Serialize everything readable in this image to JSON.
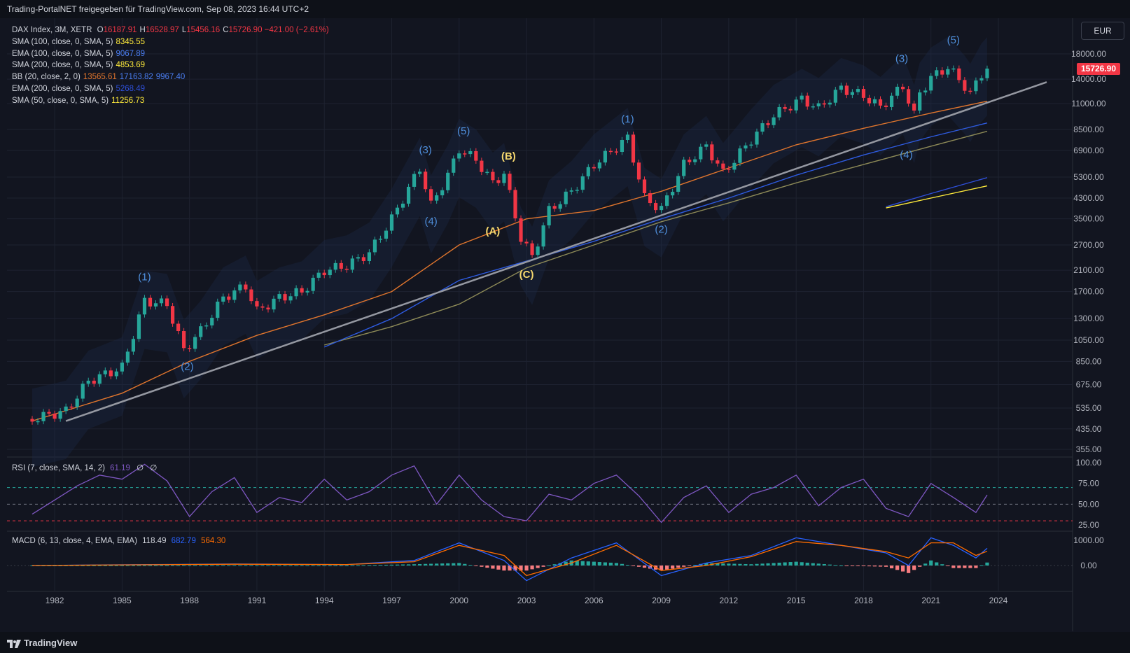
{
  "header": {
    "title": "Trading-PortalNET freigegeben für TradingView.com, Sep 08, 2023 16:44 UTC+2"
  },
  "footer": {
    "brand": "TradingView"
  },
  "currency_button": "EUR",
  "price_label": "15726.90",
  "legend": {
    "symbol": "DAX Index, 3M, XETR",
    "ohlc": [
      {
        "k": "O",
        "v": "16187.91"
      },
      {
        "k": "H",
        "v": "16528.97"
      },
      {
        "k": "L",
        "v": "15456.16"
      },
      {
        "k": "C",
        "v": "15726.90"
      }
    ],
    "change": "−421.00 (−2.61%)",
    "studies": [
      {
        "label": "SMA (100, close, 0, SMA, 5)",
        "values": [
          {
            "v": "8345.55",
            "color": "#ffeb3b"
          }
        ]
      },
      {
        "label": "EMA (100, close, 0, SMA, 5)",
        "values": [
          {
            "v": "9067.89",
            "color": "#4a7df0"
          }
        ]
      },
      {
        "label": "SMA (200, close, 0, SMA, 5)",
        "values": [
          {
            "v": "4853.69",
            "color": "#ffeb3b"
          }
        ]
      },
      {
        "label": "BB (20, close, 2, 0)",
        "values": [
          {
            "v": "13565.61",
            "color": "#e0752d"
          },
          {
            "v": "17163.82",
            "color": "#4a7df0"
          },
          {
            "v": "9967.40",
            "color": "#4a7df0"
          }
        ]
      },
      {
        "label": "EMA (200, close, 0, SMA, 5)",
        "values": [
          {
            "v": "5268.49",
            "color": "#2e4fd8"
          }
        ]
      },
      {
        "label": "SMA (50, close, 0, SMA, 5)",
        "values": [
          {
            "v": "11256.73",
            "color": "#ffeb3b"
          }
        ]
      }
    ]
  },
  "rsi_legend": {
    "label": "RSI (7, close, SMA, 14, 2)",
    "v1": "61.19",
    "v2": "∅",
    "v3": "∅"
  },
  "macd_legend": {
    "label": "MACD (6, 13, close, 4, EMA, EMA)",
    "v1": "118.49",
    "v2": "682.79",
    "v3": "564.30"
  },
  "colors": {
    "up": "#26a69a",
    "down": "#f23645",
    "wave_blue": "#4f8fdc",
    "wave_yellow": "#f5d76e",
    "rsi": "#7e57c2",
    "macd": "#2962ff",
    "signal": "#ff6d00"
  },
  "chart_data": [
    {
      "type": "line",
      "title": "DAX Index, 3M, XETR",
      "y_scale": "log",
      "y_ticks": [
        "18000.00",
        "14000.00",
        "11000.00",
        "8500.00",
        "6900.00",
        "5300.00",
        "4300.00",
        "3500.00",
        "2700.00",
        "2100.00",
        "1700.00",
        "1300.00",
        "1050.00",
        "850.00",
        "675.00",
        "535.00",
        "435.00",
        "355.00"
      ],
      "x_ticks": [
        "1982",
        "1985",
        "1988",
        "1991",
        "1994",
        "1997",
        "2000",
        "2003",
        "2006",
        "2009",
        "2012",
        "2015",
        "2018",
        "2021",
        "2024"
      ],
      "series": [
        {
          "name": "DAX close",
          "x": [
            1981,
            1982.5,
            1983.5,
            1985,
            1986,
            1987,
            1987.75,
            1988.5,
            1989.5,
            1990.5,
            1991,
            1992,
            1993,
            1994,
            1995,
            1996,
            1997,
            1998.25,
            1998.75,
            1999.5,
            2000,
            2000.75,
            2001.5,
            2002,
            2002.75,
            2003.25,
            2004,
            2005,
            2006,
            2007.5,
            2008.25,
            2009,
            2010,
            2011,
            2011.75,
            2013,
            2014,
            2015.25,
            2016,
            2017,
            2018,
            2018.75,
            2019.75,
            2020.25,
            2020.5,
            2021,
            2021.75,
            2022.5,
            2022.75,
            2023.25,
            2023.5
          ],
          "values": [
            480,
            520,
            700,
            800,
            1550,
            1500,
            950,
            1150,
            1600,
            1800,
            1400,
            1600,
            1700,
            2100,
            2200,
            2500,
            3500,
            5800,
            4000,
            5400,
            7000,
            6300,
            5000,
            5500,
            2900,
            2400,
            3800,
            4600,
            6000,
            7800,
            4300,
            3850,
            6000,
            7200,
            5500,
            7700,
            9800,
            11500,
            10500,
            12800,
            11900,
            10600,
            13100,
            9800,
            12200,
            14200,
            15800,
            13100,
            12100,
            14800,
            15726.9
          ]
        },
        {
          "name": "SMA (100, close, 0, SMA, 5)",
          "x": [
            1994,
            1997,
            2000,
            2003,
            2006,
            2009,
            2012,
            2015,
            2018,
            2021,
            2023.5
          ],
          "values": [
            1000,
            1200,
            1500,
            2150,
            2700,
            3400,
            4100,
            5000,
            6000,
            7200,
            8345.55
          ]
        },
        {
          "name": "EMA (100, close, 0, SMA, 5)",
          "x": [
            1994,
            1997,
            2000,
            2003,
            2006,
            2009,
            2012,
            2015,
            2018,
            2021,
            2023.5
          ],
          "values": [
            980,
            1300,
            1900,
            2300,
            2800,
            3500,
            4300,
            5400,
            6600,
            7900,
            9067.89
          ]
        },
        {
          "name": "SMA (200, close, 0, SMA, 5)",
          "x": [
            2019,
            2021,
            2023.5
          ],
          "values": [
            3900,
            4300,
            4853.69
          ]
        },
        {
          "name": "EMA (200, close, 0, SMA, 5)",
          "x": [
            2019,
            2021,
            2023.5
          ],
          "values": [
            3950,
            4500,
            5268.49
          ]
        },
        {
          "name": "SMA (50, close, 0, SMA, 5)",
          "x": [
            1981,
            1985,
            1988,
            1991,
            1994,
            1997,
            2000,
            2003,
            2006,
            2009,
            2012,
            2015,
            2018,
            2021,
            2023.5
          ],
          "values": [
            470,
            620,
            850,
            1100,
            1350,
            1700,
            2700,
            3500,
            3800,
            4600,
            5800,
            7300,
            8600,
            10000,
            11256.73
          ]
        }
      ],
      "wave_labels": [
        {
          "text": "(1)",
          "x": 1986,
          "y": 1900,
          "color": "blue"
        },
        {
          "text": "(2)",
          "x": 1987.9,
          "y": 780,
          "color": "blue"
        },
        {
          "text": "(3)",
          "x": 1998.5,
          "y": 6700,
          "color": "blue"
        },
        {
          "text": "(4)",
          "x": 1998.75,
          "y": 3300,
          "color": "blue"
        },
        {
          "text": "(5)",
          "x": 2000.2,
          "y": 8100,
          "color": "blue"
        },
        {
          "text": "(A)",
          "x": 2001.5,
          "y": 3000,
          "color": "yellow"
        },
        {
          "text": "(B)",
          "x": 2002.2,
          "y": 6300,
          "color": "yellow"
        },
        {
          "text": "(C)",
          "x": 2003.0,
          "y": 1950,
          "color": "yellow"
        },
        {
          "text": "(1)",
          "x": 2007.5,
          "y": 9100,
          "color": "blue"
        },
        {
          "text": "(2)",
          "x": 2009.0,
          "y": 3050,
          "color": "blue"
        },
        {
          "text": "(3)",
          "x": 2019.7,
          "y": 16600,
          "color": "blue"
        },
        {
          "text": "(4)",
          "x": 2019.9,
          "y": 6400,
          "color": "blue"
        },
        {
          "text": "(5)",
          "x": 2022.0,
          "y": 20000,
          "color": "blue"
        }
      ]
    },
    {
      "type": "line",
      "title": "RSI (7, close, SMA, 14, 2)",
      "y_ticks": [
        "100.00",
        "75.00",
        "50.00",
        "25.00"
      ],
      "x": [
        1981,
        1982,
        1983,
        1984,
        1985,
        1986,
        1987,
        1988,
        1989,
        1990,
        1991,
        1992,
        1993,
        1994,
        1995,
        1996,
        1997,
        1998,
        1999,
        2000,
        2001,
        2002,
        2003,
        2004,
        2005,
        2006,
        2007,
        2008,
        2009,
        2010,
        2011,
        2012,
        2013,
        2014,
        2015,
        2016,
        2017,
        2018,
        2019,
        2020,
        2021,
        2022,
        2023,
        2023.5
      ],
      "values": [
        38,
        55,
        72,
        85,
        80,
        98,
        78,
        35,
        65,
        82,
        40,
        58,
        52,
        80,
        55,
        65,
        85,
        96,
        50,
        85,
        55,
        35,
        30,
        62,
        55,
        75,
        85,
        60,
        28,
        58,
        72,
        40,
        62,
        70,
        85,
        48,
        70,
        80,
        45,
        35,
        75,
        58,
        40,
        61.19
      ]
    },
    {
      "type": "line",
      "title": "MACD (6, 13, close, 4, EMA, EMA)",
      "y_ticks": [
        "1000.00",
        "0.00"
      ],
      "series": [
        {
          "name": "MACD",
          "x": [
            1981,
            1985,
            1990,
            1995,
            1998,
            2000,
            2002,
            2003,
            2005,
            2007,
            2009,
            2011,
            2013,
            2015,
            2017,
            2019,
            2020,
            2021,
            2022,
            2023,
            2023.5
          ],
          "values": [
            0,
            30,
            60,
            40,
            200,
            900,
            200,
            -600,
            300,
            900,
            -400,
            100,
            400,
            1100,
            800,
            500,
            0,
            1100,
            800,
            300,
            682.79
          ]
        },
        {
          "name": "Signal",
          "x": [
            1981,
            1985,
            1990,
            1995,
            1998,
            2000,
            2002,
            2003,
            2005,
            2007,
            2009,
            2011,
            2013,
            2015,
            2017,
            2019,
            2020,
            2021,
            2022,
            2023,
            2023.5
          ],
          "values": [
            0,
            25,
            50,
            40,
            150,
            800,
            400,
            -400,
            100,
            800,
            -200,
            0,
            350,
            950,
            800,
            550,
            300,
            900,
            900,
            400,
            564.3
          ]
        }
      ]
    }
  ]
}
